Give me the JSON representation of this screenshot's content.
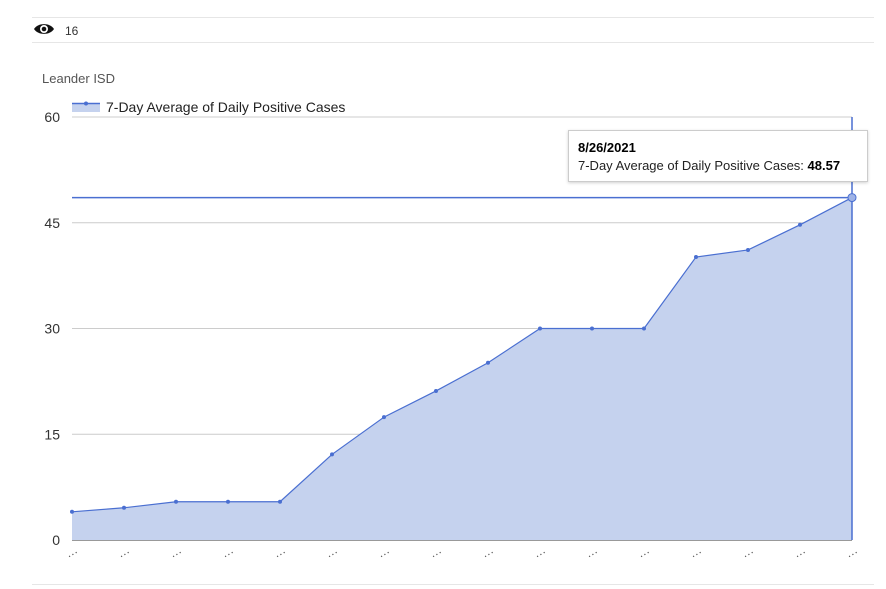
{
  "header": {
    "view_count": "16",
    "icon": "eye-icon"
  },
  "colors": {
    "line": "#4a6fd1",
    "fill": "#c5d2ee",
    "grid": "#cccccc"
  },
  "tooltip": {
    "date": "8/26/2021",
    "series_label": "7-Day Average of Daily Positive Cases: ",
    "value": "48.57"
  },
  "chart_data": {
    "type": "area",
    "title": "Leander ISD",
    "xlabel": "",
    "ylabel": "",
    "ylim": [
      0,
      60
    ],
    "yticks": [
      0,
      15,
      30,
      45,
      60
    ],
    "x_tick_labels": [
      "…",
      "…",
      "…",
      "…",
      "…",
      "…",
      "…",
      "…",
      "…",
      "…",
      "…",
      "…",
      "…",
      "…",
      "…",
      "…"
    ],
    "series": [
      {
        "name": "7-Day Average of Daily Positive Cases",
        "values": [
          4,
          4.57,
          5.43,
          5.43,
          5.43,
          12.14,
          17.43,
          21.14,
          25.14,
          30,
          30,
          30,
          40.14,
          41.14,
          44.71,
          48.57
        ]
      }
    ],
    "highlight": {
      "index": 15,
      "crosshair": true
    },
    "grid": true,
    "legend": "top-left"
  }
}
